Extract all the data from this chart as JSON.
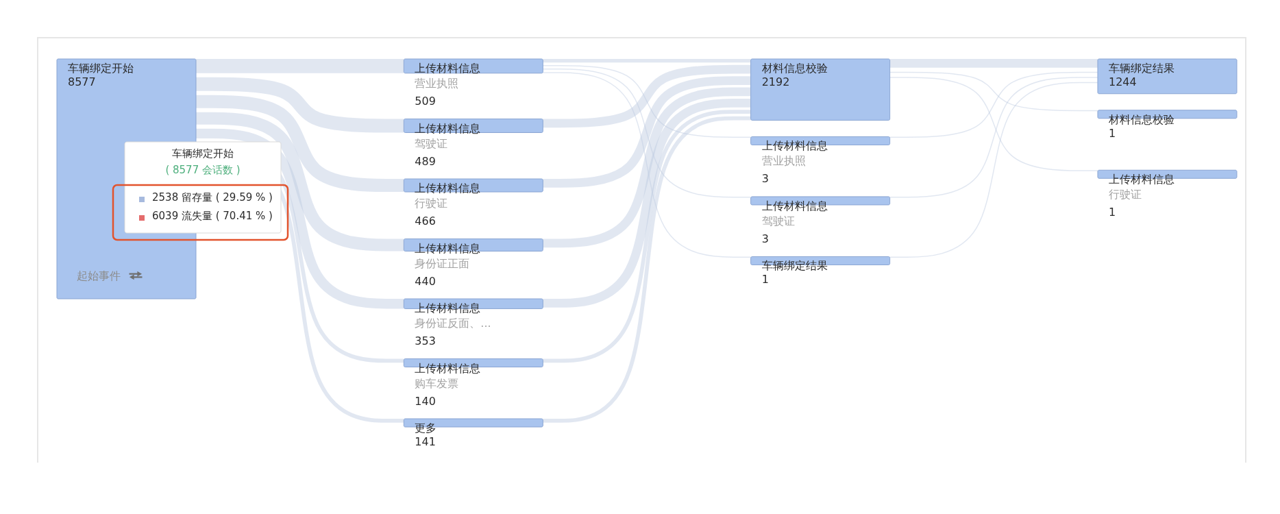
{
  "chart_data": {
    "type": "other",
    "categories": [
      "车辆绑定开始",
      "上传材料信息营业执照",
      "上传材料信息驾驶证",
      "上传材料信息行驶证",
      "上传材料信息身份证正面",
      "上传材料信息身份证反面、...",
      "上传材料信息购车发票",
      "更多",
      "材料信息校验",
      "上传材料信息营业执照",
      "上传材料信息驾驶证",
      "车辆绑定结果",
      "车辆绑定结果",
      "材料信息校验",
      "上传材料信息行驶证"
    ],
    "series": [
      {
        "color": "#a9c4ee",
        "values": [
          8577,
          null,
          null,
          null,
          null,
          null,
          null,
          null,
          null,
          null,
          null,
          null,
          null,
          null,
          null
        ]
      },
      {
        "color": "#a9c4ee",
        "values": [
          null,
          509,
          489,
          466,
          440,
          353,
          140,
          141,
          null,
          null,
          null,
          null,
          null,
          null,
          null
        ]
      },
      {
        "color": "#a9c4ee",
        "values": [
          null,
          null,
          null,
          null,
          null,
          null,
          null,
          null,
          2192,
          3,
          3,
          1,
          null,
          null,
          null
        ]
      },
      {
        "color": "#a9c4ee",
        "values": [
          null,
          null,
          null,
          null,
          null,
          null,
          null,
          null,
          null,
          null,
          null,
          null,
          1244,
          1,
          1
        ]
      }
    ],
    "data_labels": true,
    "annotations": [
      "车辆绑定开始",
      "( 8577 会话数 )",
      "2538 留存量 ( 29.59 % )",
      "6039 流失量 ( 70.41 % )",
      "起始事件"
    ]
  }
}
